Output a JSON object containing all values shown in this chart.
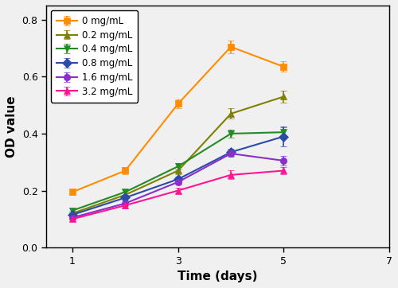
{
  "title": "",
  "xlabel": "Time (days)",
  "ylabel": "OD value",
  "xlim": [
    0.5,
    7
  ],
  "ylim": [
    0.0,
    0.85
  ],
  "xticks": [
    1,
    3,
    5,
    7
  ],
  "yticks": [
    0.0,
    0.2,
    0.4,
    0.6,
    0.8
  ],
  "series": [
    {
      "label": "0 mg/mL",
      "color": "#FF8C00",
      "marker": "s",
      "x": [
        1,
        2,
        3,
        4,
        5
      ],
      "y": [
        0.195,
        0.27,
        0.505,
        0.705,
        0.635
      ],
      "yerr": [
        0.01,
        0.012,
        0.015,
        0.022,
        0.018
      ]
    },
    {
      "label": "0.2 mg/mL",
      "color": "#808000",
      "marker": "^",
      "x": [
        1,
        2,
        3,
        4,
        5
      ],
      "y": [
        0.12,
        0.185,
        0.27,
        0.47,
        0.53
      ],
      "yerr": [
        0.008,
        0.01,
        0.012,
        0.018,
        0.022
      ]
    },
    {
      "label": "0.4 mg/mL",
      "color": "#228B22",
      "marker": "v",
      "x": [
        1,
        2,
        3,
        4,
        5
      ],
      "y": [
        0.13,
        0.195,
        0.285,
        0.4,
        0.405
      ],
      "yerr": [
        0.008,
        0.01,
        0.012,
        0.015,
        0.018
      ]
    },
    {
      "label": "0.8 mg/mL",
      "color": "#2B4BAA",
      "marker": "D",
      "x": [
        1,
        2,
        3,
        4,
        5
      ],
      "y": [
        0.115,
        0.175,
        0.24,
        0.335,
        0.39
      ],
      "yerr": [
        0.008,
        0.01,
        0.01,
        0.012,
        0.035
      ]
    },
    {
      "label": "1.6 mg/mL",
      "color": "#8B2FC9",
      "marker": "o",
      "x": [
        1,
        2,
        3,
        4,
        5
      ],
      "y": [
        0.105,
        0.155,
        0.23,
        0.33,
        0.305
      ],
      "yerr": [
        0.008,
        0.01,
        0.01,
        0.012,
        0.018
      ]
    },
    {
      "label": "3.2 mg/mL",
      "color": "#FF1493",
      "marker": "^",
      "x": [
        1,
        2,
        3,
        4,
        5
      ],
      "y": [
        0.1,
        0.148,
        0.2,
        0.255,
        0.27
      ],
      "yerr": [
        0.008,
        0.01,
        0.01,
        0.015,
        0.012
      ]
    }
  ],
  "legend_loc": "upper left",
  "markersize": 6,
  "linewidth": 1.5,
  "capsize": 3,
  "elinewidth": 1.2,
  "figsize": [
    5.0,
    3.62
  ],
  "dpi": 100
}
